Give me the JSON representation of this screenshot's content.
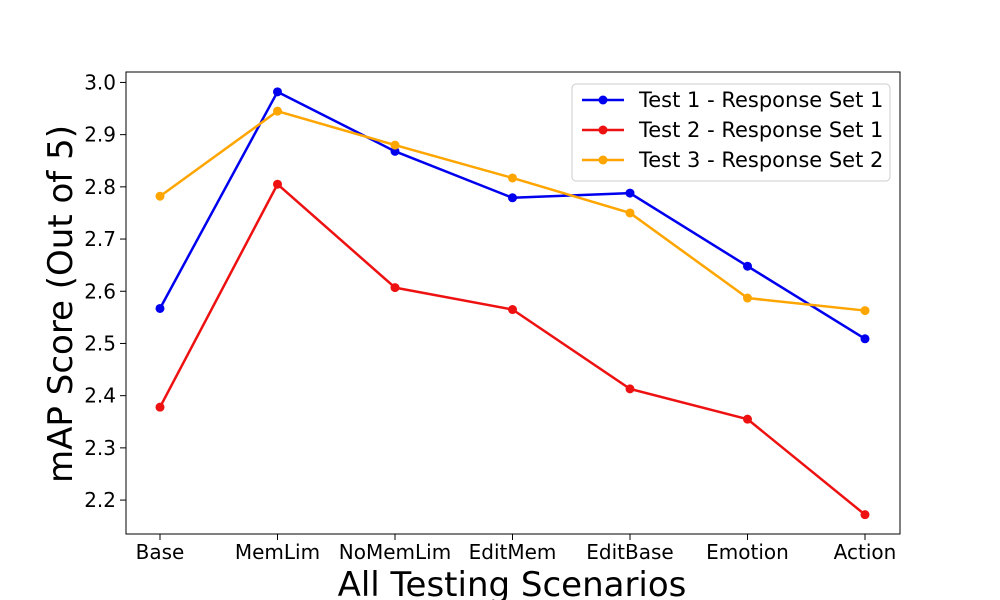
{
  "chart_data": {
    "type": "line",
    "title": "",
    "xlabel": "All Testing Scenarios",
    "ylabel": "mAP Score (Out of 5)",
    "categories": [
      "Base",
      "MemLim",
      "NoMemLim",
      "EditMem",
      "EditBase",
      "Emotion",
      "Action"
    ],
    "ylim": [
      2.135,
      3.02
    ],
    "yticks": [
      "2.2",
      "2.3",
      "2.4",
      "2.5",
      "2.6",
      "2.7",
      "2.8",
      "2.9",
      "3.0"
    ],
    "grid": false,
    "legend_position": "top-right",
    "series": [
      {
        "name": "Test 1 - Response Set 1",
        "color": "#0000ee",
        "values": [
          2.567,
          2.982,
          2.868,
          2.779,
          2.788,
          2.648,
          2.509
        ]
      },
      {
        "name": "Test 2 - Response Set 1",
        "color": "#ee1111",
        "values": [
          2.378,
          2.805,
          2.607,
          2.565,
          2.413,
          2.355,
          2.172
        ]
      },
      {
        "name": "Test 3 - Response Set 2",
        "color": "#ffa500",
        "values": [
          2.782,
          2.945,
          2.88,
          2.817,
          2.75,
          2.587,
          2.563
        ]
      }
    ]
  }
}
